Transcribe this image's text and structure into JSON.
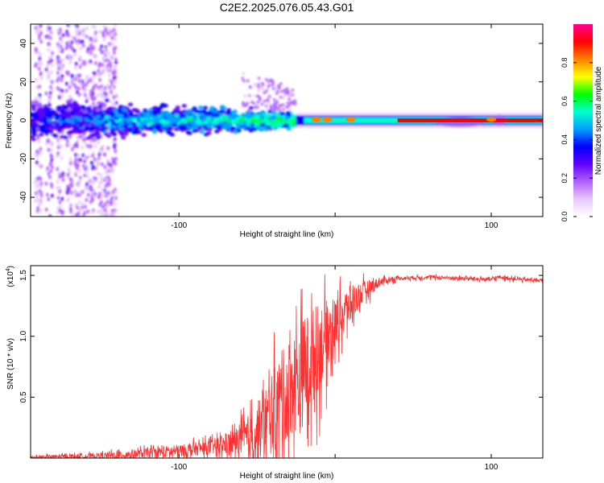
{
  "title": "C2E2.2025.076.05.43.G01",
  "chart_data": [
    {
      "type": "heatmap",
      "xlabel": "Height of straight line (km)",
      "ylabel": "Frequency (Hz)",
      "xlim": [
        -195,
        133
      ],
      "ylim": [
        -50,
        50
      ],
      "xticks": [
        -100,
        0,
        100
      ],
      "xtick_labels": [
        "-100",
        "",
        "100"
      ],
      "yticks": [
        -40,
        -20,
        0,
        20,
        40
      ],
      "ytick_labels": [
        "-40",
        "-20",
        "0",
        "20",
        "40"
      ],
      "colorbar": {
        "label": "Normalized spectral amplitude",
        "range": [
          0,
          1
        ],
        "ticks": [
          0.0,
          0.2,
          0.4,
          0.6,
          0.8
        ],
        "tick_labels": [
          "0.0",
          "0.2",
          "0.4",
          "0.6",
          "0.8"
        ],
        "colors": [
          "#ffffff",
          "#e8c8ff",
          "#b060ff",
          "#6000ff",
          "#0000ff",
          "#00a0ff",
          "#00ffcc",
          "#00ff00",
          "#ffff00",
          "#ff8000",
          "#ff0000",
          "#ff0090"
        ]
      },
      "description_bands": {
        "noise_x_range": [
          -195,
          -140
        ],
        "broad_band_x_range": [
          -140,
          -25
        ],
        "tone_x_range": [
          -25,
          133
        ],
        "tone_frequency": 0
      }
    },
    {
      "type": "line",
      "xlabel": "Height of straight line (km)",
      "ylabel": "SNR (10 * v/v)",
      "multiplier_label": "(x10",
      "multiplier_exp": "4",
      "multiplier_close": ")",
      "xlim": [
        -195,
        133
      ],
      "ylim": [
        0,
        1.58
      ],
      "xticks": [
        -100,
        0,
        100
      ],
      "xtick_labels": [
        "-100",
        "",
        "100"
      ],
      "yticks": [
        0.5,
        1.0,
        1.5
      ],
      "ytick_labels": [
        "0.5",
        "1.0",
        "1.5"
      ],
      "color": "#ff3030",
      "envelope": {
        "x": [
          -195,
          -180,
          -160,
          -140,
          -120,
          -100,
          -80,
          -65,
          -50,
          -40,
          -30,
          -20,
          -10,
          0,
          10,
          20,
          30,
          40,
          60,
          80,
          100,
          105,
          110,
          120,
          133
        ],
        "y": [
          0.01,
          0.015,
          0.02,
          0.03,
          0.05,
          0.07,
          0.1,
          0.15,
          0.25,
          0.45,
          0.65,
          0.8,
          1.0,
          1.15,
          1.3,
          1.4,
          1.46,
          1.48,
          1.49,
          1.48,
          1.47,
          1.49,
          1.48,
          1.47,
          1.46
        ],
        "noise": [
          0.02,
          0.03,
          0.04,
          0.06,
          0.08,
          0.1,
          0.12,
          0.2,
          0.45,
          0.7,
          0.8,
          0.9,
          0.7,
          0.4,
          0.3,
          0.15,
          0.06,
          0.03,
          0.03,
          0.03,
          0.03,
          0.03,
          0.03,
          0.03,
          0.03
        ]
      }
    }
  ]
}
